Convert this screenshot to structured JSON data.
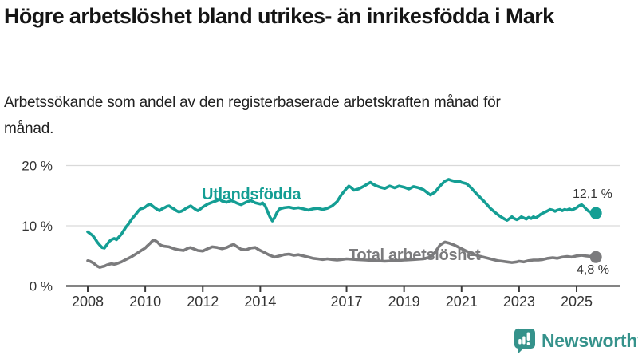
{
  "header": {
    "title": "Högre arbetslöshet bland utrikes- än inrikesfödda i Mark",
    "subtitle": "Arbetssökande som andel av den registerbaserade arbetskraften månad för månad."
  },
  "chart_data": {
    "type": "line",
    "unit": "%",
    "x_ticks": [
      2008,
      2010,
      2012,
      2014,
      2017,
      2019,
      2021,
      2023,
      2025
    ],
    "y_ticks": [
      {
        "value": 0,
        "label": "0 %"
      },
      {
        "value": 10,
        "label": "10 %"
      },
      {
        "value": 20,
        "label": "20 %"
      }
    ],
    "x_range": [
      2008,
      2025.67
    ],
    "y_range": [
      0,
      20
    ],
    "grid": "horizontal-light",
    "axis_color": "#3a3a3a",
    "grid_color": "#d9d9d9",
    "series": [
      {
        "id": "utlandsfodda",
        "name": "Utlandsfödda",
        "color": "#149e94",
        "end_label": "12,1 %",
        "end_value": 12.1,
        "points": [
          [
            2008,
            9.0
          ],
          [
            2008.08,
            8.7
          ],
          [
            2008.17,
            8.4
          ],
          [
            2008.25,
            7.9
          ],
          [
            2008.33,
            7.3
          ],
          [
            2008.42,
            6.8
          ],
          [
            2008.5,
            6.4
          ],
          [
            2008.58,
            6.3
          ],
          [
            2008.67,
            6.9
          ],
          [
            2008.75,
            7.4
          ],
          [
            2008.83,
            7.7
          ],
          [
            2008.92,
            7.9
          ],
          [
            2009,
            7.7
          ],
          [
            2009.08,
            8.1
          ],
          [
            2009.17,
            8.6
          ],
          [
            2009.25,
            9.2
          ],
          [
            2009.33,
            9.8
          ],
          [
            2009.42,
            10.3
          ],
          [
            2009.5,
            10.9
          ],
          [
            2009.58,
            11.4
          ],
          [
            2009.67,
            11.9
          ],
          [
            2009.75,
            12.4
          ],
          [
            2009.83,
            12.8
          ],
          [
            2009.92,
            12.9
          ],
          [
            2010,
            13.1
          ],
          [
            2010.08,
            13.4
          ],
          [
            2010.17,
            13.6
          ],
          [
            2010.25,
            13.3
          ],
          [
            2010.33,
            13.0
          ],
          [
            2010.42,
            12.7
          ],
          [
            2010.5,
            12.5
          ],
          [
            2010.58,
            12.8
          ],
          [
            2010.67,
            13.0
          ],
          [
            2010.75,
            13.2
          ],
          [
            2010.83,
            13.3
          ],
          [
            2010.92,
            13.0
          ],
          [
            2011,
            12.8
          ],
          [
            2011.08,
            12.5
          ],
          [
            2011.17,
            12.3
          ],
          [
            2011.25,
            12.4
          ],
          [
            2011.33,
            12.6
          ],
          [
            2011.42,
            12.9
          ],
          [
            2011.5,
            13.1
          ],
          [
            2011.58,
            13.3
          ],
          [
            2011.67,
            13.0
          ],
          [
            2011.75,
            12.7
          ],
          [
            2011.83,
            12.5
          ],
          [
            2011.92,
            12.8
          ],
          [
            2012,
            13.1
          ],
          [
            2012.17,
            13.6
          ],
          [
            2012.33,
            13.9
          ],
          [
            2012.5,
            14.2
          ],
          [
            2012.58,
            14.4
          ],
          [
            2012.67,
            14.1
          ],
          [
            2012.83,
            13.9
          ],
          [
            2013,
            14.2
          ],
          [
            2013.17,
            13.8
          ],
          [
            2013.33,
            13.5
          ],
          [
            2013.5,
            13.9
          ],
          [
            2013.67,
            14.2
          ],
          [
            2013.83,
            13.8
          ],
          [
            2014,
            13.6
          ],
          [
            2014.08,
            13.8
          ],
          [
            2014.17,
            13.3
          ],
          [
            2014.25,
            12.4
          ],
          [
            2014.33,
            11.5
          ],
          [
            2014.42,
            10.8
          ],
          [
            2014.5,
            11.4
          ],
          [
            2014.58,
            12.2
          ],
          [
            2014.67,
            12.8
          ],
          [
            2014.83,
            13.0
          ],
          [
            2015,
            13.1
          ],
          [
            2015.17,
            12.9
          ],
          [
            2015.33,
            13.0
          ],
          [
            2015.5,
            12.8
          ],
          [
            2015.67,
            12.6
          ],
          [
            2015.83,
            12.8
          ],
          [
            2016,
            12.9
          ],
          [
            2016.17,
            12.7
          ],
          [
            2016.33,
            12.9
          ],
          [
            2016.5,
            13.3
          ],
          [
            2016.67,
            14.0
          ],
          [
            2016.83,
            15.2
          ],
          [
            2017,
            16.2
          ],
          [
            2017.08,
            16.6
          ],
          [
            2017.17,
            16.3
          ],
          [
            2017.25,
            15.9
          ],
          [
            2017.42,
            16.1
          ],
          [
            2017.58,
            16.5
          ],
          [
            2017.75,
            17.0
          ],
          [
            2017.83,
            17.2
          ],
          [
            2017.92,
            16.9
          ],
          [
            2018,
            16.7
          ],
          [
            2018.17,
            16.4
          ],
          [
            2018.33,
            16.2
          ],
          [
            2018.5,
            16.6
          ],
          [
            2018.67,
            16.3
          ],
          [
            2018.83,
            16.6
          ],
          [
            2019,
            16.4
          ],
          [
            2019.17,
            16.1
          ],
          [
            2019.33,
            16.5
          ],
          [
            2019.5,
            16.3
          ],
          [
            2019.67,
            16.0
          ],
          [
            2019.83,
            15.4
          ],
          [
            2019.92,
            15.1
          ],
          [
            2020.08,
            15.6
          ],
          [
            2020.25,
            16.6
          ],
          [
            2020.42,
            17.4
          ],
          [
            2020.55,
            17.7
          ],
          [
            2020.67,
            17.5
          ],
          [
            2020.83,
            17.3
          ],
          [
            2020.92,
            17.4
          ],
          [
            2021,
            17.2
          ],
          [
            2021.17,
            17.0
          ],
          [
            2021.33,
            16.3
          ],
          [
            2021.5,
            15.4
          ],
          [
            2021.67,
            14.6
          ],
          [
            2021.83,
            13.8
          ],
          [
            2022,
            12.9
          ],
          [
            2022.17,
            12.2
          ],
          [
            2022.33,
            11.6
          ],
          [
            2022.5,
            11.1
          ],
          [
            2022.58,
            10.9
          ],
          [
            2022.67,
            11.2
          ],
          [
            2022.75,
            11.5
          ],
          [
            2022.83,
            11.2
          ],
          [
            2022.92,
            11.0
          ],
          [
            2023,
            11.2
          ],
          [
            2023.08,
            11.5
          ],
          [
            2023.17,
            11.3
          ],
          [
            2023.25,
            11.1
          ],
          [
            2023.33,
            11.4
          ],
          [
            2023.42,
            11.2
          ],
          [
            2023.5,
            11.5
          ],
          [
            2023.58,
            11.3
          ],
          [
            2023.67,
            11.6
          ],
          [
            2023.75,
            11.9
          ],
          [
            2023.83,
            12.1
          ],
          [
            2023.92,
            12.3
          ],
          [
            2024,
            12.5
          ],
          [
            2024.08,
            12.7
          ],
          [
            2024.17,
            12.6
          ],
          [
            2024.25,
            12.4
          ],
          [
            2024.33,
            12.6
          ],
          [
            2024.42,
            12.7
          ],
          [
            2024.5,
            12.5
          ],
          [
            2024.58,
            12.7
          ],
          [
            2024.67,
            12.6
          ],
          [
            2024.75,
            12.8
          ],
          [
            2024.83,
            12.6
          ],
          [
            2024.92,
            12.8
          ],
          [
            2025,
            13.0
          ],
          [
            2025.08,
            13.3
          ],
          [
            2025.17,
            13.5
          ],
          [
            2025.25,
            13.2
          ],
          [
            2025.33,
            12.8
          ],
          [
            2025.42,
            12.4
          ],
          [
            2025.5,
            12.2
          ],
          [
            2025.58,
            12.1
          ],
          [
            2025.67,
            12.1
          ]
        ]
      },
      {
        "id": "total",
        "name": "Total arbetslöshet",
        "color": "#7b7b7d",
        "end_label": "4,8 %",
        "end_value": 4.8,
        "points": [
          [
            2008,
            4.2
          ],
          [
            2008.08,
            4.1
          ],
          [
            2008.17,
            3.9
          ],
          [
            2008.25,
            3.6
          ],
          [
            2008.33,
            3.3
          ],
          [
            2008.42,
            3.1
          ],
          [
            2008.5,
            3.2
          ],
          [
            2008.58,
            3.3
          ],
          [
            2008.67,
            3.5
          ],
          [
            2008.75,
            3.6
          ],
          [
            2008.83,
            3.7
          ],
          [
            2008.92,
            3.6
          ],
          [
            2009,
            3.7
          ],
          [
            2009.17,
            4.0
          ],
          [
            2009.33,
            4.4
          ],
          [
            2009.5,
            4.8
          ],
          [
            2009.67,
            5.3
          ],
          [
            2009.83,
            5.8
          ],
          [
            2010,
            6.3
          ],
          [
            2010.08,
            6.7
          ],
          [
            2010.17,
            7.1
          ],
          [
            2010.25,
            7.5
          ],
          [
            2010.33,
            7.6
          ],
          [
            2010.42,
            7.3
          ],
          [
            2010.5,
            6.9
          ],
          [
            2010.58,
            6.7
          ],
          [
            2010.67,
            6.6
          ],
          [
            2010.83,
            6.5
          ],
          [
            2011,
            6.2
          ],
          [
            2011.17,
            6.0
          ],
          [
            2011.33,
            5.9
          ],
          [
            2011.5,
            6.3
          ],
          [
            2011.58,
            6.4
          ],
          [
            2011.67,
            6.2
          ],
          [
            2011.83,
            5.9
          ],
          [
            2012,
            5.8
          ],
          [
            2012.17,
            6.2
          ],
          [
            2012.33,
            6.5
          ],
          [
            2012.5,
            6.4
          ],
          [
            2012.67,
            6.2
          ],
          [
            2012.83,
            6.4
          ],
          [
            2013,
            6.8
          ],
          [
            2013.08,
            6.9
          ],
          [
            2013.17,
            6.6
          ],
          [
            2013.33,
            6.1
          ],
          [
            2013.5,
            6.0
          ],
          [
            2013.67,
            6.3
          ],
          [
            2013.83,
            6.4
          ],
          [
            2013.92,
            6.1
          ],
          [
            2014,
            5.9
          ],
          [
            2014.17,
            5.5
          ],
          [
            2014.33,
            5.1
          ],
          [
            2014.5,
            4.8
          ],
          [
            2014.67,
            5.0
          ],
          [
            2014.83,
            5.2
          ],
          [
            2015,
            5.3
          ],
          [
            2015.17,
            5.1
          ],
          [
            2015.33,
            5.2
          ],
          [
            2015.5,
            5.0
          ],
          [
            2015.67,
            4.8
          ],
          [
            2015.83,
            4.6
          ],
          [
            2016,
            4.5
          ],
          [
            2016.17,
            4.4
          ],
          [
            2016.33,
            4.5
          ],
          [
            2016.5,
            4.4
          ],
          [
            2016.67,
            4.3
          ],
          [
            2016.83,
            4.4
          ],
          [
            2017,
            4.5
          ],
          [
            2017.33,
            4.4
          ],
          [
            2017.67,
            4.3
          ],
          [
            2018,
            4.2
          ],
          [
            2018.33,
            4.1
          ],
          [
            2018.67,
            4.2
          ],
          [
            2019,
            4.3
          ],
          [
            2019.33,
            4.4
          ],
          [
            2019.67,
            4.5
          ],
          [
            2019.92,
            4.8
          ],
          [
            2020.08,
            5.6
          ],
          [
            2020.25,
            6.8
          ],
          [
            2020.42,
            7.3
          ],
          [
            2020.58,
            7.1
          ],
          [
            2020.75,
            6.8
          ],
          [
            2020.92,
            6.4
          ],
          [
            2021.08,
            6.0
          ],
          [
            2021.25,
            5.6
          ],
          [
            2021.42,
            5.3
          ],
          [
            2021.58,
            5.0
          ],
          [
            2021.75,
            4.8
          ],
          [
            2021.92,
            4.6
          ],
          [
            2022.08,
            4.4
          ],
          [
            2022.25,
            4.2
          ],
          [
            2022.42,
            4.1
          ],
          [
            2022.58,
            4.0
          ],
          [
            2022.75,
            3.9
          ],
          [
            2022.92,
            4.0
          ],
          [
            2023,
            4.1
          ],
          [
            2023.17,
            4.0
          ],
          [
            2023.33,
            4.2
          ],
          [
            2023.5,
            4.3
          ],
          [
            2023.67,
            4.3
          ],
          [
            2023.83,
            4.4
          ],
          [
            2024,
            4.6
          ],
          [
            2024.17,
            4.7
          ],
          [
            2024.33,
            4.6
          ],
          [
            2024.5,
            4.8
          ],
          [
            2024.67,
            4.9
          ],
          [
            2024.83,
            4.8
          ],
          [
            2025,
            5.0
          ],
          [
            2025.17,
            5.1
          ],
          [
            2025.33,
            5.0
          ],
          [
            2025.5,
            4.9
          ],
          [
            2025.67,
            4.8
          ]
        ]
      }
    ]
  },
  "footer": {
    "brand": "Newsworthy",
    "brand_color": "#35928b",
    "brand_icon": "newsworthy-chart-bubble-icon"
  }
}
